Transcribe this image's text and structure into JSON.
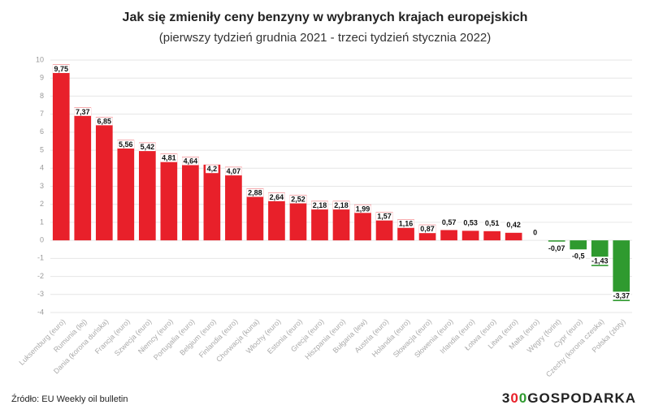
{
  "chart_data": {
    "type": "bar",
    "title": "Jak się zmieniły ceny benzyny w wybranych krajach europejskich",
    "subtitle": "(pierwszy tydzień grudnia 2021 - trzeci tydzień stycznia 2022)",
    "categories": [
      "Luksemburg (euro)",
      "Rumunia (lej)",
      "Dania (korona duńska)",
      "Francja (euro)",
      "Szwecja (euro)",
      "Niemcy (euro)",
      "Portugalia (euro)",
      "Belgium (euro)",
      "Finlandia (euro)",
      "Chorwacja (kuna)",
      "Włochy (euro)",
      "Estonia (euro)",
      "Grecja (euro)",
      "Hiszpania (euro)",
      "Bułgaria (lew)",
      "Austria (euro)",
      "Holandia (euro)",
      "Słowacja (euro)",
      "Słowenia (euro)",
      "Irlandia (euro)",
      "Łotwa (euro)",
      "Litwa (euro)",
      "Malta (euro)",
      "Węgry (forint)",
      "Cypr (euro)",
      "Czechy (korona czeska)",
      "Polska (złoty)"
    ],
    "values": [
      9.75,
      7.37,
      6.85,
      5.56,
      5.42,
      4.81,
      4.64,
      4.2,
      4.07,
      2.88,
      2.64,
      2.52,
      2.18,
      2.18,
      1.99,
      1.57,
      1.16,
      0.87,
      0.57,
      0.53,
      0.51,
      0.42,
      0,
      -0.07,
      -0.5,
      -1.43,
      -3.37
    ],
    "value_labels": [
      "9,75",
      "7,37",
      "6,85",
      "5,56",
      "5,42",
      "4,81",
      "4,64",
      "4,2",
      "4,07",
      "2,88",
      "2,64",
      "2,52",
      "2,18",
      "2,18",
      "1,99",
      "1,57",
      "1,16",
      "0,87",
      "0,57",
      "0,53",
      "0,51",
      "0,42",
      "0",
      "-0,07",
      "-0,5",
      "-1,43",
      "-3,37"
    ],
    "positive_color": "#e8202a",
    "negative_color": "#2f9a2f",
    "ylim": [
      -4,
      10
    ],
    "yticks": [
      -4,
      -3,
      -2,
      -1,
      0,
      1,
      2,
      3,
      4,
      5,
      6,
      7,
      8,
      9,
      10
    ],
    "grid": true,
    "source": "Źródło: EU Weekly oil bulletin",
    "logo": [
      "3",
      "0",
      "0",
      "GOSPODARKA"
    ]
  }
}
